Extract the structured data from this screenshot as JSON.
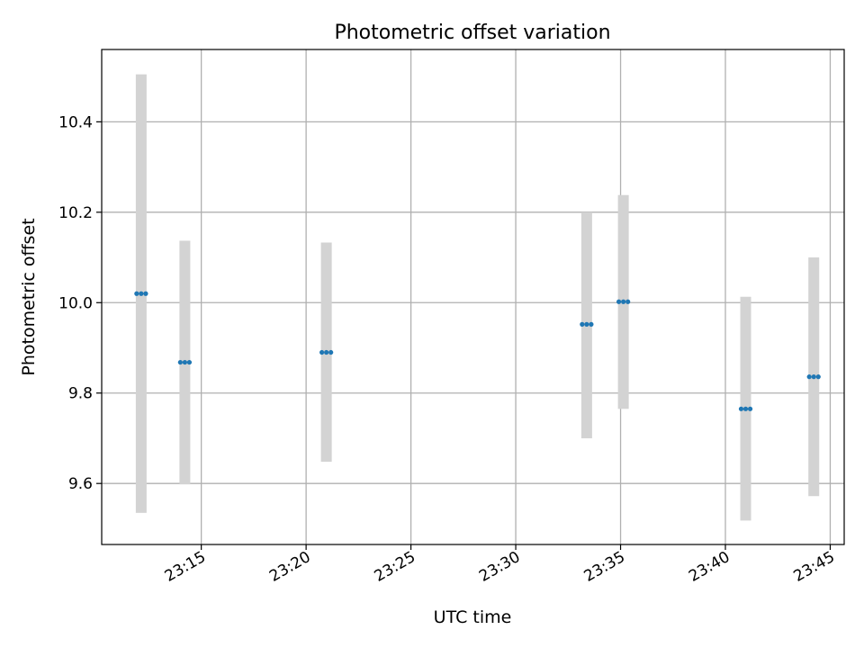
{
  "chart_data": {
    "type": "scatter",
    "title": "Photometric offset variation",
    "xlabel": "UTC time",
    "ylabel": "Photometric offset",
    "xlim": [
      "23:10:15",
      "23:45:40"
    ],
    "ylim": [
      9.465,
      10.56
    ],
    "x_ticks": [
      "23:15",
      "23:20",
      "23:25",
      "23:30",
      "23:35",
      "23:40",
      "23:45"
    ],
    "y_ticks": [
      9.6,
      9.8,
      10.0,
      10.2,
      10.4
    ],
    "y_tick_labels": [
      "9.6",
      "9.8",
      "10.0",
      "10.2",
      "10.4"
    ],
    "grid": true,
    "legend": null,
    "colors": {
      "points": "#1f77b4",
      "errorbars": "#d3d3d3",
      "grid": "#b0b0b0"
    },
    "groups": [
      {
        "x": "23:12:08",
        "value": 10.02,
        "low": 9.535,
        "high": 10.505,
        "times": [
          "23:11:55",
          "23:12:08",
          "23:12:21"
        ]
      },
      {
        "x": "23:14:13",
        "value": 9.868,
        "low": 9.598,
        "high": 10.137,
        "times": [
          "23:14:00",
          "23:14:13",
          "23:14:26"
        ]
      },
      {
        "x": "23:20:58",
        "value": 9.89,
        "low": 9.648,
        "high": 10.133,
        "times": [
          "23:20:45",
          "23:20:58",
          "23:21:11"
        ]
      },
      {
        "x": "23:33:23",
        "value": 9.952,
        "low": 9.7,
        "high": 10.2,
        "times": [
          "23:33:10",
          "23:33:23",
          "23:33:36"
        ]
      },
      {
        "x": "23:35:08",
        "value": 10.002,
        "low": 9.765,
        "high": 10.238,
        "times": [
          "23:34:55",
          "23:35:08",
          "23:35:21"
        ]
      },
      {
        "x": "23:40:58",
        "value": 9.765,
        "low": 9.518,
        "high": 10.013,
        "times": [
          "23:40:45",
          "23:40:58",
          "23:41:11"
        ]
      },
      {
        "x": "23:44:13",
        "value": 9.836,
        "low": 9.572,
        "high": 10.1,
        "times": [
          "23:44:00",
          "23:44:13",
          "23:44:26"
        ]
      }
    ]
  }
}
